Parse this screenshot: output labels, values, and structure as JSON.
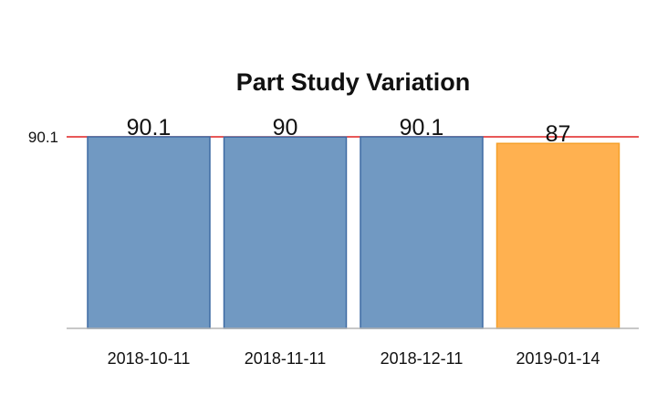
{
  "chart_data": {
    "type": "bar",
    "title": "Part Study Variation",
    "categories": [
      "2018-10-11",
      "2018-11-11",
      "2018-12-11",
      "2019-01-14"
    ],
    "values": [
      90.1,
      90,
      90.1,
      87
    ],
    "data_labels": [
      "90.1",
      "90",
      "90.1",
      "87"
    ],
    "bar_colors": [
      "#7199c2",
      "#7199c2",
      "#7199c2",
      "#ffb150"
    ],
    "bar_border_colors": [
      "#3d6aa3",
      "#3d6aa3",
      "#3d6aa3",
      "#f5a02a"
    ],
    "reference_line": {
      "value": 90.1,
      "label": "90.1",
      "color": "#e02020"
    },
    "baseline_value": 0,
    "ylim": [
      0,
      90.1
    ],
    "grid": false,
    "legend": "none",
    "xlabel": "",
    "ylabel": ""
  }
}
